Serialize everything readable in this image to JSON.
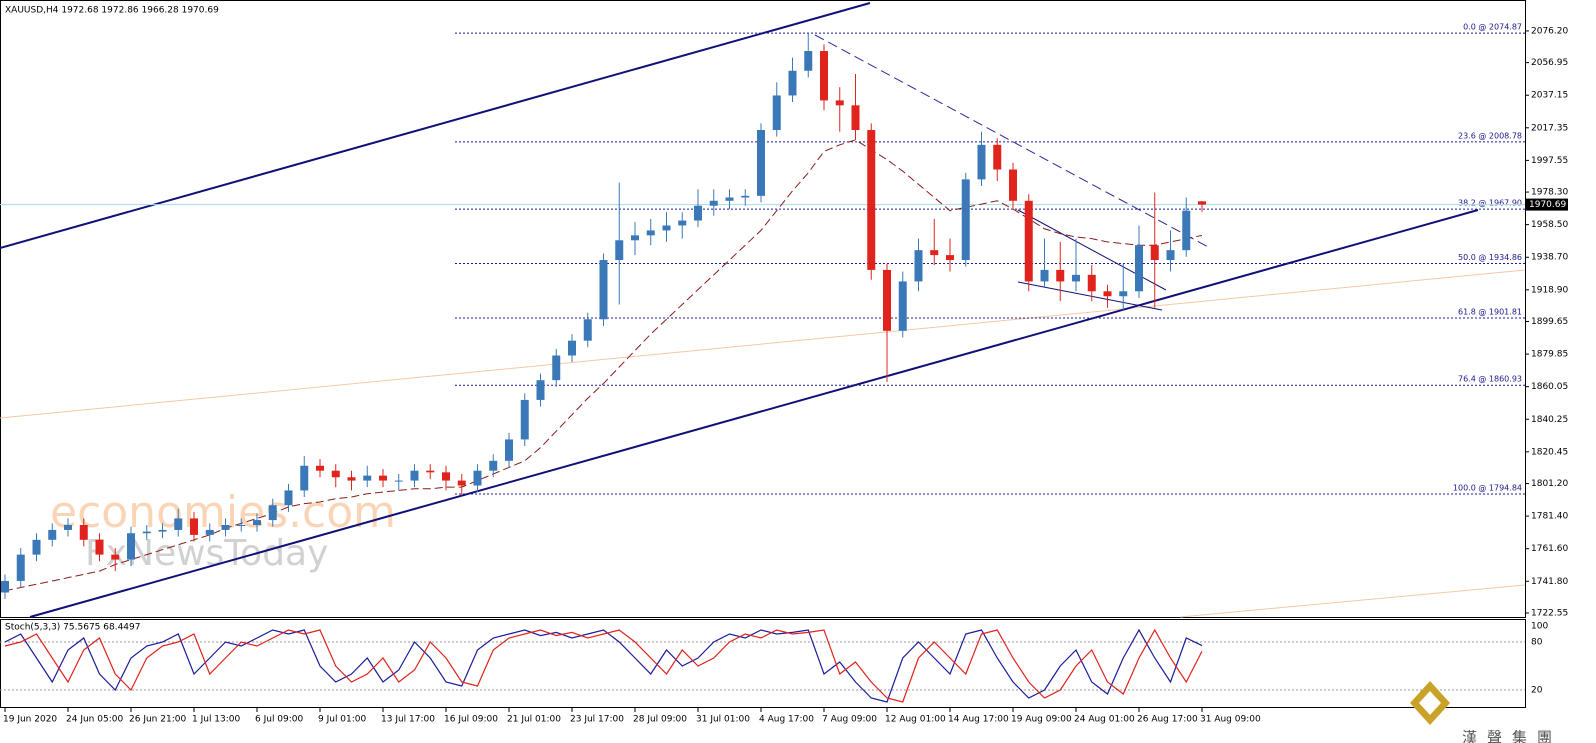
{
  "chart_data": [
    {
      "type": "candlestick",
      "title": "XAUUSD,H4  1972.68 1972.86 1966.28 1970.69",
      "categories": [
        "19 Jun 2020",
        null,
        null,
        null,
        "24 Jun 05:00",
        null,
        null,
        null,
        "26 Jun 21:00",
        null,
        null,
        null,
        "1 Jul 13:00",
        null,
        null,
        null,
        "6 Jul 09:00",
        null,
        null,
        null,
        "9 Jul 01:00",
        null,
        null,
        null,
        "13 Jul 17:00",
        null,
        null,
        null,
        "16 Jul 09:00",
        null,
        null,
        null,
        "21 Jul 01:00",
        null,
        null,
        null,
        "23 Jul 17:00",
        null,
        null,
        null,
        "28 Jul 09:00",
        null,
        null,
        null,
        "31 Jul 01:00",
        null,
        null,
        null,
        "4 Aug 17:00",
        null,
        null,
        null,
        "7 Aug 09:00",
        null,
        null,
        null,
        "12 Aug 01:00",
        null,
        null,
        null,
        "14 Aug 17:00",
        null,
        null,
        null,
        "19 Aug 09:00",
        null,
        null,
        null,
        "24 Aug 01:00",
        null,
        null,
        null,
        "26 Aug 17:00",
        null,
        null,
        null,
        "31 Aug 09:00"
      ],
      "open": [
        1735,
        1742,
        1758,
        1767,
        1773,
        1776,
        1767,
        1758,
        1755,
        1771,
        1772,
        1773,
        1780,
        1770,
        1773,
        1776,
        1776,
        1779,
        1788,
        1797,
        1812,
        1809,
        1805,
        1803,
        1806,
        1803,
        1803,
        1809,
        1808,
        1803,
        1800,
        1809,
        1815,
        1828,
        1852,
        1864,
        1879,
        1888,
        1901,
        1937,
        1949,
        1952,
        1955,
        1958,
        1961,
        1970,
        1973,
        1975,
        1976,
        2016,
        2037,
        2052,
        2064,
        2034,
        2031,
        2016,
        1931,
        1894,
        1924,
        1943,
        1940,
        1937,
        1986,
        2007,
        1992,
        1973,
        1924,
        1931,
        1924,
        1928,
        1918,
        1915,
        1918,
        1946,
        1937,
        1943,
        1972.68
      ],
      "high": [
        1746,
        1762,
        1771,
        1777,
        1780,
        1780,
        1771,
        1762,
        1775,
        1776,
        1777,
        1786,
        1784,
        1777,
        1780,
        1780,
        1783,
        1792,
        1801,
        1818,
        1816,
        1813,
        1809,
        1812,
        1810,
        1807,
        1813,
        1813,
        1812,
        1807,
        1813,
        1819,
        1832,
        1856,
        1868,
        1883,
        1892,
        1905,
        1941,
        1984,
        1960,
        1962,
        1966,
        1966,
        1980,
        1980,
        1980,
        1980,
        2020,
        2045,
        2060,
        2074.87,
        2068,
        2042,
        2050,
        2020,
        1935,
        1930,
        1950,
        1962,
        1950,
        1990,
        2015,
        2011,
        1996,
        1977,
        1950,
        1948,
        1950,
        1934,
        1922,
        1935,
        1958,
        1978,
        1955,
        1975,
        1972.86
      ],
      "low": [
        1731,
        1738,
        1754,
        1763,
        1769,
        1763,
        1754,
        1748,
        1751,
        1767,
        1768,
        1769,
        1766,
        1766,
        1769,
        1772,
        1772,
        1775,
        1784,
        1793,
        1805,
        1799,
        1797,
        1799,
        1799,
        1797,
        1799,
        1804,
        1797,
        1794,
        1796,
        1805,
        1811,
        1824,
        1848,
        1860,
        1875,
        1884,
        1897,
        1910,
        1940,
        1946,
        1948,
        1950,
        1957,
        1964,
        1968,
        1970,
        1972,
        2012,
        2033,
        2048,
        2028,
        2015,
        2010,
        1925,
        1863,
        1890,
        1918,
        1934,
        1930,
        1933,
        1982,
        1985,
        1968,
        1918,
        1920,
        1912,
        1918,
        1912,
        1908,
        1906,
        1914,
        1908,
        1930,
        1939,
        1966.28
      ],
      "close": [
        1742,
        1758,
        1767,
        1773,
        1776,
        1767,
        1758,
        1755,
        1771,
        1772,
        1773,
        1780,
        1770,
        1773,
        1776,
        1776,
        1779,
        1788,
        1797,
        1812,
        1809,
        1805,
        1803,
        1806,
        1803,
        1803,
        1809,
        1808,
        1803,
        1800,
        1809,
        1815,
        1828,
        1852,
        1864,
        1879,
        1888,
        1901,
        1937,
        1949,
        1952,
        1955,
        1958,
        1961,
        1970,
        1973,
        1975,
        1976,
        2016,
        2037,
        2052,
        2064,
        2034,
        2031,
        2016,
        1931,
        1894,
        1924,
        1943,
        1940,
        1937,
        1986,
        2007,
        1992,
        1973,
        1924,
        1931,
        1924,
        1928,
        1918,
        1915,
        1918,
        1946,
        1937,
        1943,
        1967,
        1970.69
      ],
      "up_color": "#3b78b8",
      "down_color": "#e0231d",
      "ma_color": "#8b1c1c",
      "ma_values": [
        1736,
        1738,
        1740,
        1742,
        1744,
        1746,
        1748,
        1752,
        1755,
        1758,
        1761,
        1764,
        1767,
        1770,
        1774,
        1777,
        1780,
        1783,
        1787,
        1789,
        1790,
        1792,
        1793,
        1795,
        1796,
        1797,
        1798,
        1798,
        1799,
        1799,
        1803,
        1807,
        1811,
        1815,
        1823,
        1833,
        1843,
        1853,
        1862,
        1872,
        1882,
        1892,
        1901,
        1910,
        1919,
        1928,
        1937,
        1946,
        1955,
        1967,
        1979,
        1990,
        2003,
        2007,
        2010,
        2004,
        1998,
        1991,
        1983,
        1975,
        1967,
        1969,
        1971,
        1973,
        1968,
        1962,
        1956,
        1953,
        1951,
        1950,
        1948,
        1947,
        1946,
        1946,
        1948,
        1950,
        1952
      ],
      "ylim": [
        1720.1,
        2095.0
      ],
      "yticks": [
        {
          "value": 2076.2,
          "label": "2076.20"
        },
        2056.95,
        2037.15,
        2017.35,
        1997.55,
        {
          "value": 1978.3,
          "label": "1978.30"
        },
        {
          "value": 1958.5,
          "label": "1958.50"
        },
        {
          "value": 1938.7,
          "label": "1938.70"
        },
        {
          "value": 1918.9,
          "label": "1918.90"
        },
        1899.65,
        1879.85,
        1860.05,
        1840.25,
        1820.45,
        {
          "value": 1801.2,
          "label": "1801.20"
        },
        {
          "value": 1781.4,
          "label": "1781.40"
        },
        {
          "value": 1761.6,
          "label": "1761.60"
        },
        {
          "value": 1741.8,
          "label": "1741.80"
        },
        1722.55
      ],
      "fib_levels": [
        {
          "value": 2074.87,
          "label": "0.0 @ 2074.87"
        },
        {
          "value": 2008.78,
          "label": "23.6 @ 2008.78"
        },
        {
          "value": 1967.9,
          "label": "38.2 @ 1967.90"
        },
        {
          "value": 1934.86,
          "label": "50.0 @ 1934.86"
        },
        {
          "value": 1901.81,
          "label": "61.8 @ 1901.81"
        },
        {
          "value": 1860.93,
          "label": "76.4 @ 1860.93"
        },
        {
          "value": 1794.84,
          "label": "100.0 @ 1794.84"
        }
      ],
      "fib_color": "#1a1a8c",
      "last_price": {
        "value": 1970.69,
        "label": "1970.69"
      },
      "watermarks": [
        "economies.com",
        "FxNewsToday"
      ],
      "logo": "漢聲集團"
    },
    {
      "type": "line",
      "title": "Stoch(5,3,3) 75.5675 68.4497",
      "series": [
        {
          "color": "#1c1c9c",
          "values": [
            80,
            90,
            60,
            30,
            70,
            85,
            40,
            20,
            60,
            75,
            80,
            90,
            40,
            60,
            80,
            75,
            85,
            95,
            90,
            95,
            50,
            30,
            40,
            60,
            30,
            45,
            80,
            60,
            30,
            25,
            70,
            85,
            90,
            95,
            88,
            92,
            85,
            90,
            95,
            80,
            60,
            40,
            70,
            50,
            60,
            80,
            90,
            85,
            95,
            90,
            92,
            95,
            40,
            55,
            30,
            10,
            5,
            60,
            80,
            60,
            40,
            90,
            95,
            60,
            30,
            10,
            20,
            50,
            70,
            30,
            15,
            60,
            95,
            60,
            30,
            85,
            75.57
          ]
        },
        {
          "color": "#e0231d",
          "values": [
            75,
            80,
            90,
            60,
            30,
            70,
            85,
            40,
            20,
            60,
            75,
            80,
            90,
            40,
            60,
            80,
            75,
            85,
            95,
            90,
            95,
            50,
            30,
            40,
            60,
            30,
            45,
            80,
            60,
            30,
            25,
            70,
            85,
            90,
            95,
            88,
            92,
            85,
            90,
            95,
            80,
            60,
            40,
            70,
            50,
            60,
            80,
            90,
            85,
            95,
            90,
            92,
            95,
            40,
            55,
            30,
            10,
            5,
            60,
            80,
            60,
            40,
            90,
            95,
            60,
            30,
            10,
            20,
            50,
            70,
            30,
            15,
            60,
            95,
            60,
            30,
            68.45
          ]
        }
      ],
      "ylim": [
        0,
        100
      ],
      "yticks": [
        20,
        80,
        100
      ]
    }
  ]
}
